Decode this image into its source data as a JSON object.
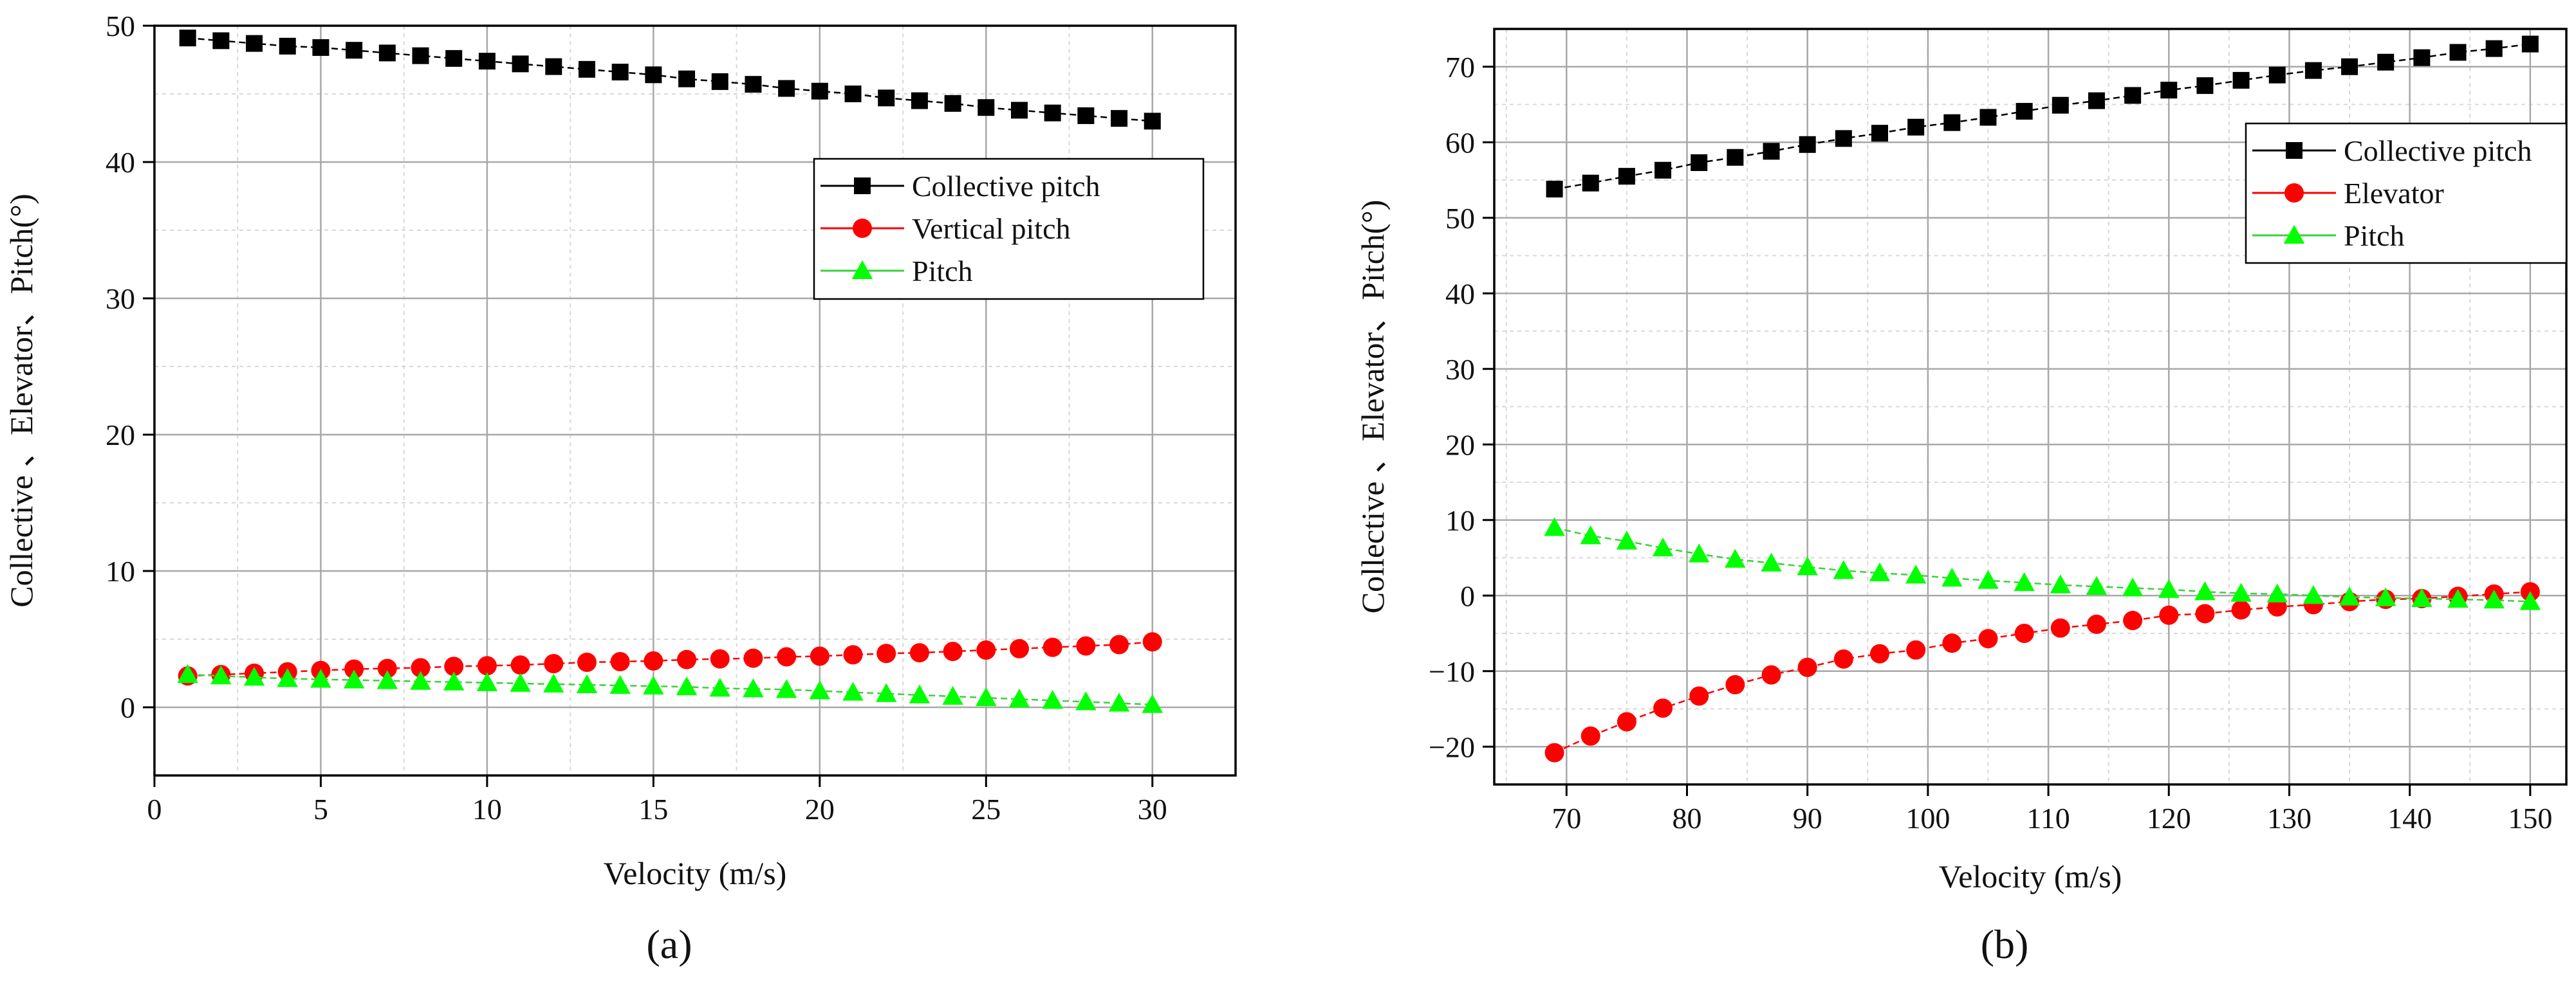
{
  "chart_data": [
    {
      "type": "line",
      "panel_label": "(a)",
      "xlabel": "Velocity (m/s)",
      "ylabel": "Collective 、Elevator、Pitch(°)",
      "xlim": [
        0,
        32.5
      ],
      "ylim": [
        -5,
        50
      ],
      "x_ticks": [
        0,
        5,
        10,
        15,
        20,
        25,
        30
      ],
      "x_tick_labels": [
        "0",
        "5",
        "10",
        "15",
        "20",
        "25",
        "30"
      ],
      "y_ticks": [
        0,
        10,
        20,
        30,
        40,
        50
      ],
      "y_tick_labels": [
        "0",
        "10",
        "20",
        "30",
        "40",
        "50"
      ],
      "grid": true,
      "legend_position": "top-right",
      "x": [
        1,
        2,
        3,
        4,
        5,
        6,
        7,
        8,
        9,
        10,
        11,
        12,
        13,
        14,
        15,
        16,
        17,
        18,
        19,
        20,
        21,
        22,
        23,
        24,
        25,
        26,
        27,
        28,
        29,
        30
      ],
      "series": [
        {
          "name": "Collective pitch",
          "marker": "square",
          "color": "#000000",
          "values": [
            49.1,
            48.9,
            48.7,
            48.5,
            48.4,
            48.2,
            48.0,
            47.8,
            47.6,
            47.4,
            47.2,
            47.0,
            46.8,
            46.6,
            46.4,
            46.1,
            45.9,
            45.7,
            45.4,
            45.2,
            45.0,
            44.7,
            44.5,
            44.3,
            44.0,
            43.8,
            43.6,
            43.4,
            43.2,
            43.0
          ]
        },
        {
          "name": "Vertical pitch",
          "marker": "circle",
          "color": "#ff0000",
          "values": [
            2.3,
            2.4,
            2.5,
            2.6,
            2.7,
            2.8,
            2.85,
            2.9,
            3.0,
            3.05,
            3.1,
            3.2,
            3.3,
            3.35,
            3.4,
            3.5,
            3.55,
            3.6,
            3.7,
            3.75,
            3.85,
            3.95,
            4.0,
            4.1,
            4.2,
            4.3,
            4.4,
            4.5,
            4.6,
            4.8
          ]
        },
        {
          "name": "Pitch",
          "marker": "triangle",
          "color": "#00ff00",
          "values": [
            2.4,
            2.3,
            2.2,
            2.1,
            2.05,
            2.0,
            1.95,
            1.9,
            1.85,
            1.8,
            1.75,
            1.7,
            1.65,
            1.6,
            1.55,
            1.5,
            1.4,
            1.35,
            1.3,
            1.2,
            1.1,
            1.0,
            0.9,
            0.8,
            0.7,
            0.6,
            0.5,
            0.4,
            0.3,
            0.2
          ]
        }
      ]
    },
    {
      "type": "line",
      "panel_label": "(b)",
      "xlabel": "Velocity (m/s)",
      "ylabel": "Collective 、Elevator、Pitch(°)",
      "xlim": [
        64,
        153
      ],
      "ylim": [
        -25,
        75
      ],
      "x_ticks": [
        70,
        80,
        90,
        100,
        110,
        120,
        130,
        140,
        150
      ],
      "x_tick_labels": [
        "70",
        "80",
        "90",
        "100",
        "110",
        "120",
        "130",
        "140",
        "150"
      ],
      "y_ticks": [
        -20,
        -10,
        0,
        10,
        20,
        30,
        40,
        50,
        60,
        70
      ],
      "y_tick_labels": [
        "−20",
        "−10",
        "0",
        "10",
        "20",
        "30",
        "40",
        "50",
        "60",
        "70"
      ],
      "grid": true,
      "legend_position": "top-right",
      "x": [
        69,
        72,
        75,
        78,
        81,
        84,
        87,
        90,
        93,
        96,
        99,
        102,
        105,
        108,
        111,
        114,
        117,
        120,
        123,
        126,
        129,
        132,
        135,
        138,
        141,
        144,
        147,
        150
      ],
      "series": [
        {
          "name": "Collective pitch",
          "marker": "square",
          "color": "#000000",
          "values": [
            53.8,
            54.6,
            55.5,
            56.3,
            57.3,
            58.0,
            58.8,
            59.7,
            60.5,
            61.2,
            62.0,
            62.6,
            63.3,
            64.1,
            64.9,
            65.5,
            66.2,
            66.9,
            67.5,
            68.2,
            68.9,
            69.5,
            70.0,
            70.6,
            71.2,
            71.9,
            72.4,
            73.0
          ]
        },
        {
          "name": "Elevator",
          "marker": "circle",
          "color": "#ff0000",
          "values": [
            -20.8,
            -18.6,
            -16.7,
            -14.9,
            -13.3,
            -11.8,
            -10.5,
            -9.5,
            -8.4,
            -7.7,
            -7.2,
            -6.3,
            -5.7,
            -5.0,
            -4.3,
            -3.8,
            -3.3,
            -2.6,
            -2.4,
            -1.9,
            -1.5,
            -1.2,
            -0.8,
            -0.5,
            -0.4,
            -0.1,
            0.2,
            0.5
          ]
        },
        {
          "name": "Pitch",
          "marker": "triangle",
          "color": "#00ff00",
          "values": [
            9.0,
            7.9,
            7.2,
            6.3,
            5.5,
            4.8,
            4.3,
            3.8,
            3.3,
            3.0,
            2.7,
            2.3,
            2.0,
            1.7,
            1.4,
            1.2,
            1.0,
            0.8,
            0.5,
            0.3,
            0.2,
            0.0,
            -0.2,
            -0.3,
            -0.4,
            -0.5,
            -0.6,
            -0.8
          ]
        }
      ]
    }
  ]
}
